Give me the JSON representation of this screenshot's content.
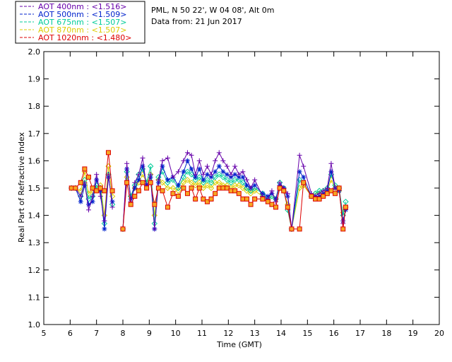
{
  "header": {
    "site_line": "PML, N 50 22', W 04 08', Alt 0m",
    "date_line": "Data from: 21 Jun 2017"
  },
  "chart_data": {
    "type": "line",
    "xlabel": "Time (GMT)",
    "ylabel": "Real Part of Refractive Index",
    "xlim": [
      5,
      20
    ],
    "ylim": [
      1.0,
      2.0
    ],
    "xticks": [
      5,
      6,
      7,
      8,
      9,
      10,
      11,
      12,
      13,
      14,
      15,
      16,
      17,
      18,
      19,
      20
    ],
    "yticks": [
      1.0,
      1.1,
      1.2,
      1.3,
      1.4,
      1.5,
      1.6,
      1.7,
      1.8,
      1.9,
      2.0
    ],
    "grid": false,
    "legend_position": "top-left outside plot",
    "x": [
      6.05,
      6.2,
      6.4,
      6.55,
      6.7,
      6.85,
      7.0,
      7.15,
      7.3,
      7.45,
      7.6,
      8.0,
      8.15,
      8.3,
      8.45,
      8.6,
      8.75,
      8.9,
      9.05,
      9.2,
      9.35,
      9.5,
      9.7,
      9.9,
      10.1,
      10.3,
      10.45,
      10.6,
      10.75,
      10.9,
      11.05,
      11.2,
      11.35,
      11.5,
      11.65,
      11.8,
      11.95,
      12.1,
      12.25,
      12.4,
      12.55,
      12.7,
      12.85,
      13.0,
      13.3,
      13.5,
      13.65,
      13.8,
      13.95,
      14.1,
      14.25,
      14.4,
      14.7,
      14.85,
      15.15,
      15.3,
      15.45,
      15.6,
      15.75,
      15.9,
      16.05,
      16.2,
      16.35,
      16.45
    ],
    "series": [
      {
        "name": "AOT  400nm : <1.516>",
        "color": "#6600aa",
        "marker": "plus",
        "values": [
          1.5,
          1.5,
          1.47,
          1.52,
          1.42,
          1.47,
          1.55,
          1.47,
          1.38,
          1.55,
          1.43,
          1.35,
          1.59,
          1.45,
          1.52,
          1.55,
          1.61,
          1.5,
          1.55,
          1.35,
          1.53,
          1.6,
          1.61,
          1.54,
          1.56,
          1.6,
          1.63,
          1.62,
          1.55,
          1.6,
          1.55,
          1.58,
          1.55,
          1.6,
          1.63,
          1.6,
          1.58,
          1.55,
          1.58,
          1.55,
          1.56,
          1.53,
          1.5,
          1.53,
          1.47,
          1.46,
          1.49,
          1.45,
          1.52,
          1.5,
          1.48,
          1.35,
          1.62,
          1.58,
          1.48,
          1.47,
          1.48,
          1.49,
          1.5,
          1.59,
          1.5,
          1.5,
          1.37,
          1.43
        ]
      },
      {
        "name": "AOT  500nm : <1.509>",
        "color": "#0022cc",
        "marker": "asterisk",
        "values": [
          1.5,
          1.5,
          1.45,
          1.51,
          1.44,
          1.45,
          1.53,
          1.49,
          1.35,
          1.54,
          1.45,
          1.35,
          1.57,
          1.46,
          1.5,
          1.53,
          1.58,
          1.51,
          1.54,
          1.35,
          1.52,
          1.58,
          1.53,
          1.54,
          1.51,
          1.56,
          1.6,
          1.57,
          1.54,
          1.57,
          1.53,
          1.55,
          1.54,
          1.56,
          1.58,
          1.56,
          1.55,
          1.54,
          1.55,
          1.54,
          1.54,
          1.51,
          1.5,
          1.51,
          1.48,
          1.47,
          1.48,
          1.46,
          1.51,
          1.5,
          1.47,
          1.35,
          1.56,
          1.54,
          1.47,
          1.47,
          1.47,
          1.48,
          1.49,
          1.56,
          1.5,
          1.49,
          1.38,
          1.42
        ]
      },
      {
        "name": "AOT  675nm : <1.507>",
        "color": "#00cc99",
        "marker": "diamond",
        "values": [
          1.5,
          1.5,
          1.47,
          1.53,
          1.46,
          1.47,
          1.51,
          1.5,
          1.37,
          1.55,
          1.44,
          1.35,
          1.56,
          1.47,
          1.51,
          1.55,
          1.57,
          1.52,
          1.58,
          1.37,
          1.54,
          1.56,
          1.52,
          1.53,
          1.5,
          1.54,
          1.56,
          1.55,
          1.53,
          1.54,
          1.52,
          1.53,
          1.52,
          1.54,
          1.55,
          1.54,
          1.53,
          1.52,
          1.53,
          1.53,
          1.52,
          1.5,
          1.49,
          1.5,
          1.48,
          1.46,
          1.47,
          1.46,
          1.52,
          1.5,
          1.42,
          1.35,
          1.53,
          1.52,
          1.47,
          1.48,
          1.49,
          1.49,
          1.5,
          1.55,
          1.51,
          1.5,
          1.4,
          1.45
        ]
      },
      {
        "name": "AOT  870nm : <1.507>",
        "color": "#ddcc00",
        "marker": "diamond",
        "values": [
          1.5,
          1.5,
          1.49,
          1.56,
          1.48,
          1.49,
          1.5,
          1.51,
          1.4,
          1.58,
          1.47,
          1.35,
          1.54,
          1.47,
          1.5,
          1.52,
          1.55,
          1.52,
          1.55,
          1.4,
          1.53,
          1.52,
          1.5,
          1.5,
          1.49,
          1.52,
          1.53,
          1.52,
          1.51,
          1.52,
          1.5,
          1.51,
          1.5,
          1.52,
          1.52,
          1.51,
          1.51,
          1.5,
          1.51,
          1.51,
          1.5,
          1.49,
          1.48,
          1.49,
          1.47,
          1.46,
          1.47,
          1.46,
          1.5,
          1.49,
          1.44,
          1.35,
          1.5,
          1.51,
          1.47,
          1.48,
          1.48,
          1.49,
          1.49,
          1.53,
          1.5,
          1.49,
          1.41,
          1.43
        ]
      },
      {
        "name": "AOT 1020nm : <1.480>",
        "color": "#dd0000",
        "marker": "square",
        "values": [
          1.5,
          1.5,
          1.52,
          1.57,
          1.54,
          1.5,
          1.49,
          1.5,
          1.49,
          1.63,
          1.49,
          1.35,
          1.52,
          1.44,
          1.47,
          1.49,
          1.52,
          1.5,
          1.52,
          1.44,
          1.5,
          1.49,
          1.43,
          1.48,
          1.47,
          1.5,
          1.48,
          1.5,
          1.46,
          1.5,
          1.46,
          1.45,
          1.46,
          1.48,
          1.5,
          1.5,
          1.5,
          1.49,
          1.49,
          1.48,
          1.46,
          1.46,
          1.44,
          1.46,
          1.46,
          1.45,
          1.44,
          1.43,
          1.5,
          1.49,
          1.43,
          1.35,
          1.35,
          1.52,
          1.47,
          1.46,
          1.46,
          1.47,
          1.48,
          1.49,
          1.48,
          1.5,
          1.35,
          1.43
        ]
      }
    ]
  }
}
